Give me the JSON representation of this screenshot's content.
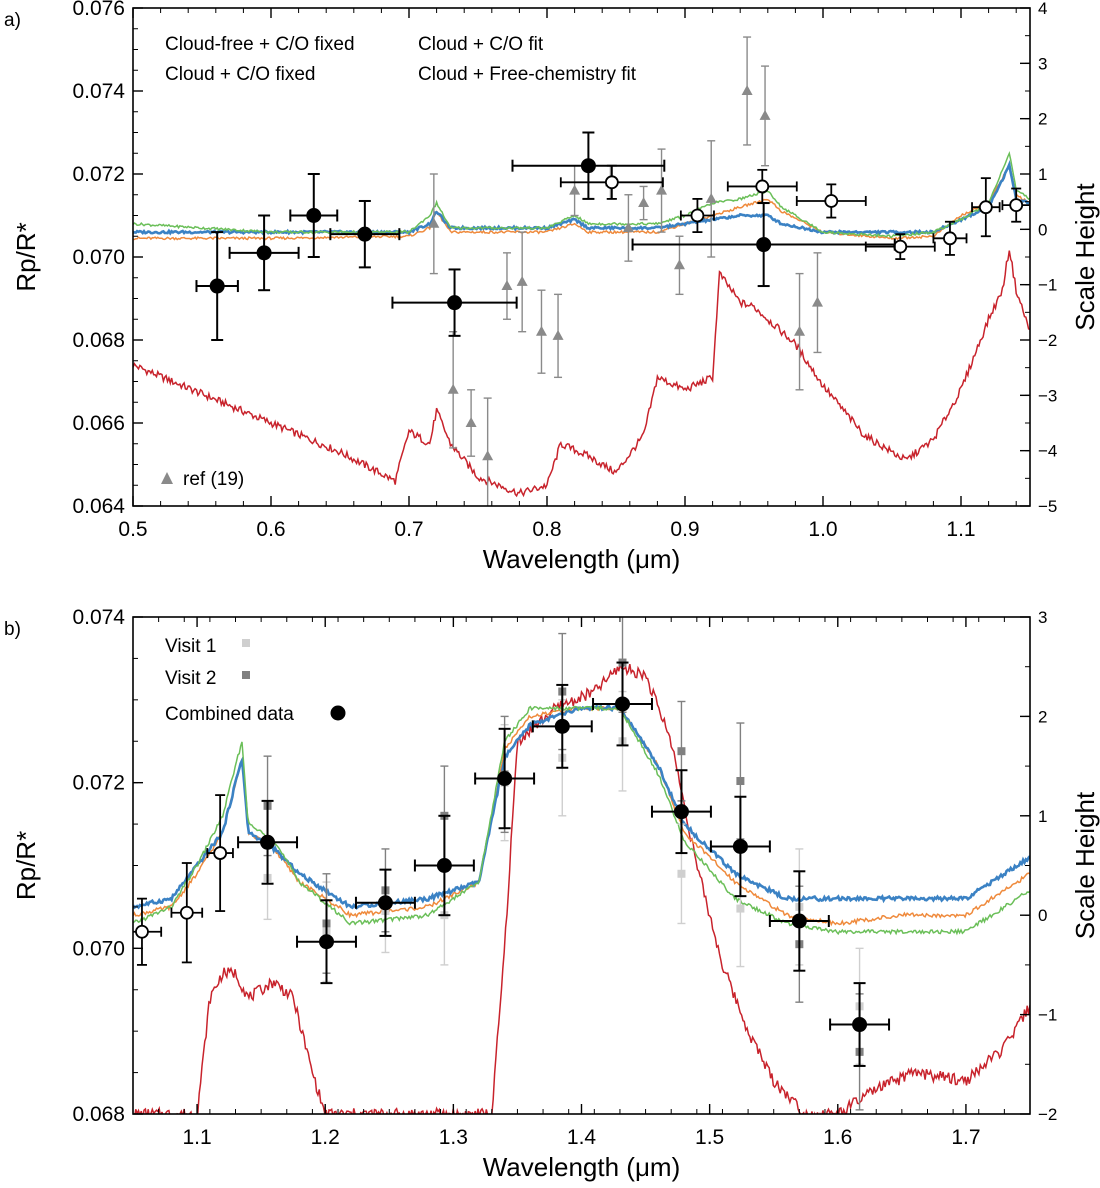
{
  "chart_data": [
    {
      "panel_label": "a)",
      "type": "line",
      "xlabel": "Wavelength (μm)",
      "ylabel": "Rp/R*",
      "y2label": "Scale Height",
      "xlim": [
        0.5,
        1.15
      ],
      "ylim": [
        0.064,
        0.076
      ],
      "y2lim": [
        -5,
        4
      ],
      "xticks": [
        "0.5",
        "0.6",
        "0.7",
        "0.8",
        "0.9",
        "1.0",
        "1.1"
      ],
      "yticks": [
        "0.064",
        "0.066",
        "0.068",
        "0.070",
        "0.072",
        "0.074",
        "0.076"
      ],
      "y2ticks": [
        "-5",
        "-4",
        "-3",
        "-2",
        "-1",
        "0",
        "1",
        "2",
        "3",
        "4"
      ],
      "models": [
        {
          "name": "Cloud-free + C/O fixed",
          "color": "#c8232c",
          "x": [
            0.5,
            0.55,
            0.6,
            0.65,
            0.69,
            0.7,
            0.715,
            0.72,
            0.73,
            0.75,
            0.78,
            0.8,
            0.81,
            0.83,
            0.85,
            0.87,
            0.88,
            0.9,
            0.92,
            0.925,
            0.94,
            0.95,
            0.96,
            0.98,
            1.0,
            1.03,
            1.06,
            1.08,
            1.1,
            1.12,
            1.13,
            1.135,
            1.14,
            1.15
          ],
          "y": [
            0.0674,
            0.0667,
            0.066,
            0.0653,
            0.0646,
            0.0658,
            0.0655,
            0.0663,
            0.0655,
            0.0647,
            0.0643,
            0.0645,
            0.0655,
            0.0652,
            0.0648,
            0.0657,
            0.0671,
            0.0668,
            0.0671,
            0.0696,
            0.0689,
            0.0688,
            0.0685,
            0.0679,
            0.0669,
            0.0657,
            0.0651,
            0.0656,
            0.0668,
            0.0685,
            0.0692,
            0.0702,
            0.0692,
            0.0682
          ]
        },
        {
          "name": "Cloud + C/O fit",
          "color": "#ef8a3c",
          "x": [
            0.5,
            0.6,
            0.7,
            0.715,
            0.72,
            0.73,
            0.8,
            0.82,
            0.83,
            0.88,
            0.9,
            0.92,
            0.94,
            0.96,
            0.97,
            1.0,
            1.05,
            1.08,
            1.1,
            1.12,
            1.135,
            1.14,
            1.15
          ],
          "y": [
            0.07045,
            0.07045,
            0.0705,
            0.0707,
            0.0711,
            0.0706,
            0.0706,
            0.0708,
            0.0706,
            0.0706,
            0.0708,
            0.071,
            0.0712,
            0.0714,
            0.0711,
            0.0706,
            0.07045,
            0.0705,
            0.071,
            0.0713,
            0.0722,
            0.0715,
            0.0713
          ]
        },
        {
          "name": "Cloud + C/O fixed",
          "color": "#3b82c4",
          "x": [
            0.5,
            0.6,
            0.7,
            0.715,
            0.72,
            0.73,
            0.8,
            0.82,
            0.83,
            0.88,
            0.9,
            0.92,
            0.94,
            0.96,
            0.97,
            1.0,
            1.05,
            1.08,
            1.1,
            1.12,
            1.135,
            1.14,
            1.15
          ],
          "y": [
            0.0706,
            0.0706,
            0.0706,
            0.0708,
            0.0711,
            0.0707,
            0.0707,
            0.0709,
            0.0707,
            0.0707,
            0.0708,
            0.0709,
            0.071,
            0.071,
            0.0708,
            0.0706,
            0.0706,
            0.0706,
            0.0709,
            0.0712,
            0.0722,
            0.0714,
            0.0713
          ]
        },
        {
          "name": "Cloud + Free-chemistry fit",
          "color": "#6bbf59",
          "x": [
            0.5,
            0.6,
            0.7,
            0.715,
            0.72,
            0.73,
            0.8,
            0.82,
            0.83,
            0.88,
            0.9,
            0.92,
            0.94,
            0.96,
            0.97,
            1.0,
            1.05,
            1.08,
            1.1,
            1.12,
            1.135,
            1.14,
            1.15
          ],
          "y": [
            0.0708,
            0.0706,
            0.0706,
            0.071,
            0.0713,
            0.0707,
            0.0707,
            0.071,
            0.0708,
            0.0708,
            0.071,
            0.0713,
            0.0714,
            0.0716,
            0.0712,
            0.0706,
            0.0705,
            0.0706,
            0.0709,
            0.0713,
            0.0725,
            0.0716,
            0.0714
          ]
        }
      ],
      "combined_points": [
        {
          "x": 0.561,
          "xerr": 0.015,
          "y": 0.0693,
          "yerr": 0.0013
        },
        {
          "x": 0.595,
          "xerr": 0.025,
          "y": 0.0701,
          "yerr": 0.0009
        },
        {
          "x": 0.631,
          "xerr": 0.017,
          "y": 0.071,
          "yerr": 0.001
        },
        {
          "x": 0.668,
          "xerr": 0.025,
          "y": 0.07055,
          "yerr": 0.0008
        },
        {
          "x": 0.733,
          "xerr": 0.045,
          "y": 0.0689,
          "yerr": 0.0008
        },
        {
          "x": 0.83,
          "xerr": 0.055,
          "y": 0.0722,
          "yerr": 0.0008
        },
        {
          "x": 0.957,
          "xerr": 0.095,
          "y": 0.0703,
          "yerr": 0.001
        }
      ],
      "open_points": [
        {
          "x": 0.847,
          "xerr": 0.037,
          "y": 0.0718,
          "yerr": 0.0004
        },
        {
          "x": 0.909,
          "xerr": 0.012,
          "y": 0.071,
          "yerr": 0.0004
        },
        {
          "x": 0.956,
          "xerr": 0.025,
          "y": 0.0717,
          "yerr": 0.0004
        },
        {
          "x": 1.006,
          "xerr": 0.025,
          "y": 0.07135,
          "yerr": 0.0004
        },
        {
          "x": 1.056,
          "xerr": 0.025,
          "y": 0.07025,
          "yerr": 0.0003
        },
        {
          "x": 1.092,
          "xerr": 0.012,
          "y": 0.07045,
          "yerr": 0.0004
        },
        {
          "x": 1.118,
          "xerr": 0.01,
          "y": 0.0712,
          "yerr": 0.0007
        },
        {
          "x": 1.14,
          "xerr": 0.01,
          "y": 0.07125,
          "yerr": 0.0004
        }
      ],
      "ref_points": [
        {
          "x": 0.718,
          "y": 0.0708,
          "yerr": 0.0012
        },
        {
          "x": 0.732,
          "y": 0.0668,
          "yerr": 0.0014
        },
        {
          "x": 0.745,
          "y": 0.066,
          "yerr": 0.0008
        },
        {
          "x": 0.757,
          "y": 0.0652,
          "yerr": 0.0014
        },
        {
          "x": 0.771,
          "y": 0.0693,
          "yerr": 0.0008
        },
        {
          "x": 0.782,
          "y": 0.0694,
          "yerr": 0.0012
        },
        {
          "x": 0.796,
          "y": 0.0682,
          "yerr": 0.001
        },
        {
          "x": 0.808,
          "y": 0.0681,
          "yerr": 0.001
        },
        {
          "x": 0.82,
          "y": 0.0716,
          "yerr": 0.0006
        },
        {
          "x": 0.846,
          "y": 0.0718,
          "yerr": 0.0004
        },
        {
          "x": 0.859,
          "y": 0.0707,
          "yerr": 0.0008
        },
        {
          "x": 0.87,
          "y": 0.0713,
          "yerr": 0.0004
        },
        {
          "x": 0.883,
          "y": 0.0716,
          "yerr": 0.001
        },
        {
          "x": 0.896,
          "y": 0.0698,
          "yerr": 0.0007
        },
        {
          "x": 0.919,
          "y": 0.0714,
          "yerr": 0.0014
        },
        {
          "x": 0.945,
          "y": 0.074,
          "yerr": 0.0013
        },
        {
          "x": 0.958,
          "y": 0.0734,
          "yerr": 0.0012
        },
        {
          "x": 0.983,
          "y": 0.0682,
          "yerr": 0.0014
        },
        {
          "x": 0.996,
          "y": 0.0689,
          "yerr": 0.0012
        }
      ],
      "legend": {
        "entries": [
          "Cloud-free + C/O fixed",
          "Cloud + C/O fit",
          "Cloud + C/O fixed",
          "Cloud + Free-chemistry fit"
        ],
        "ref_label": "ref (19)"
      }
    },
    {
      "panel_label": "b)",
      "type": "line",
      "xlabel": "Wavelength (μm)",
      "ylabel": "Rp/R*",
      "y2label": "Scale Height",
      "xlim": [
        1.05,
        1.75
      ],
      "ylim": [
        0.068,
        0.074
      ],
      "y2lim": [
        -2,
        3
      ],
      "xticks": [
        "1.1",
        "1.2",
        "1.3",
        "1.4",
        "1.5",
        "1.6",
        "1.7"
      ],
      "yticks": [
        "0.068",
        "0.070",
        "0.072",
        "0.074"
      ],
      "y2ticks": [
        "-2",
        "-1",
        "0",
        "1",
        "2",
        "3"
      ],
      "models": [
        {
          "name": "Cloud-free + C/O fixed",
          "color": "#c8232c",
          "x": [
            1.1,
            1.11,
            1.12,
            1.13,
            1.14,
            1.16,
            1.175,
            1.19,
            1.2,
            1.33,
            1.34,
            1.35,
            1.38,
            1.41,
            1.43,
            1.45,
            1.47,
            1.49,
            1.51,
            1.53,
            1.55,
            1.575,
            1.6,
            1.63,
            1.66,
            1.7,
            1.73,
            1.75
          ],
          "y": [
            0.068,
            0.0694,
            0.0697,
            0.0697,
            0.0694,
            0.0696,
            0.0694,
            0.0685,
            0.068,
            0.068,
            0.07,
            0.0725,
            0.0729,
            0.0731,
            0.0734,
            0.0733,
            0.0725,
            0.071,
            0.0698,
            0.069,
            0.0684,
            0.068,
            0.068,
            0.0683,
            0.0685,
            0.0684,
            0.0688,
            0.0693
          ]
        },
        {
          "name": "Cloud + C/O fit",
          "color": "#ef8a3c",
          "x": [
            1.05,
            1.08,
            1.1,
            1.12,
            1.135,
            1.14,
            1.16,
            1.18,
            1.22,
            1.28,
            1.32,
            1.34,
            1.36,
            1.4,
            1.43,
            1.46,
            1.48,
            1.52,
            1.56,
            1.6,
            1.65,
            1.7,
            1.75
          ],
          "y": [
            0.0704,
            0.0705,
            0.0709,
            0.0714,
            0.0723,
            0.0714,
            0.0712,
            0.0708,
            0.0704,
            0.0705,
            0.0708,
            0.0724,
            0.0728,
            0.0729,
            0.0729,
            0.0722,
            0.0714,
            0.0708,
            0.0704,
            0.0703,
            0.0704,
            0.0704,
            0.0709
          ]
        },
        {
          "name": "Cloud + C/O fixed",
          "color": "#3b82c4",
          "x": [
            1.05,
            1.08,
            1.1,
            1.12,
            1.135,
            1.14,
            1.16,
            1.18,
            1.22,
            1.28,
            1.32,
            1.34,
            1.36,
            1.4,
            1.43,
            1.46,
            1.48,
            1.52,
            1.56,
            1.6,
            1.65,
            1.7,
            1.75
          ],
          "y": [
            0.0705,
            0.0706,
            0.071,
            0.0714,
            0.0723,
            0.0714,
            0.0712,
            0.0709,
            0.0705,
            0.0706,
            0.0708,
            0.0723,
            0.0727,
            0.0729,
            0.0729,
            0.0722,
            0.0715,
            0.0709,
            0.0706,
            0.0706,
            0.0706,
            0.0706,
            0.0711
          ]
        },
        {
          "name": "Cloud + Free-chemistry fit",
          "color": "#6bbf59",
          "x": [
            1.05,
            1.08,
            1.1,
            1.12,
            1.135,
            1.14,
            1.16,
            1.18,
            1.22,
            1.28,
            1.32,
            1.34,
            1.36,
            1.4,
            1.43,
            1.46,
            1.48,
            1.52,
            1.56,
            1.6,
            1.65,
            1.7,
            1.75
          ],
          "y": [
            0.0703,
            0.0705,
            0.071,
            0.0716,
            0.0725,
            0.0715,
            0.0713,
            0.0708,
            0.0703,
            0.0704,
            0.0708,
            0.0725,
            0.0729,
            0.0729,
            0.0729,
            0.0721,
            0.0713,
            0.0706,
            0.0703,
            0.0702,
            0.0702,
            0.0702,
            0.0707
          ]
        }
      ],
      "combined_points": [
        {
          "x": 1.155,
          "xerr": 0.023,
          "y": 0.07128,
          "yerr": 0.0005
        },
        {
          "x": 1.201,
          "xerr": 0.023,
          "y": 0.07008,
          "yerr": 0.0005
        },
        {
          "x": 1.247,
          "xerr": 0.023,
          "y": 0.07055,
          "yerr": 0.0004
        },
        {
          "x": 1.293,
          "xerr": 0.023,
          "y": 0.071,
          "yerr": 0.0006
        },
        {
          "x": 1.34,
          "xerr": 0.023,
          "y": 0.07205,
          "yerr": 0.0006
        },
        {
          "x": 1.385,
          "xerr": 0.023,
          "y": 0.07268,
          "yerr": 0.0005
        },
        {
          "x": 1.432,
          "xerr": 0.023,
          "y": 0.07295,
          "yerr": 0.0005
        },
        {
          "x": 1.478,
          "xerr": 0.023,
          "y": 0.07165,
          "yerr": 0.0005
        },
        {
          "x": 1.524,
          "xerr": 0.023,
          "y": 0.07123,
          "yerr": 0.0006
        },
        {
          "x": 1.57,
          "xerr": 0.023,
          "y": 0.07033,
          "yerr": 0.0006
        },
        {
          "x": 1.617,
          "xerr": 0.023,
          "y": 0.06908,
          "yerr": 0.0005
        }
      ],
      "open_points": [
        {
          "x": 1.057,
          "xerr": 0.015,
          "y": 0.0702,
          "yerr": 0.0004
        },
        {
          "x": 1.092,
          "xerr": 0.012,
          "y": 0.07043,
          "yerr": 0.0006
        },
        {
          "x": 1.118,
          "xerr": 0.01,
          "y": 0.07115,
          "yerr": 0.0007
        }
      ],
      "visit1_points": [
        {
          "x": 1.155,
          "y": 0.07085,
          "yerr": 0.0005
        },
        {
          "x": 1.201,
          "y": 0.0702,
          "yerr": 0.0006
        },
        {
          "x": 1.247,
          "y": 0.07045,
          "yerr": 0.0005
        },
        {
          "x": 1.293,
          "y": 0.0704,
          "yerr": 0.0006
        },
        {
          "x": 1.34,
          "y": 0.072,
          "yerr": 0.0007
        },
        {
          "x": 1.385,
          "y": 0.0723,
          "yerr": 0.0007
        },
        {
          "x": 1.432,
          "y": 0.0725,
          "yerr": 0.0006
        },
        {
          "x": 1.478,
          "y": 0.0709,
          "yerr": 0.0006
        },
        {
          "x": 1.524,
          "y": 0.07048,
          "yerr": 0.0007
        },
        {
          "x": 1.57,
          "y": 0.0705,
          "yerr": 0.0007
        },
        {
          "x": 1.617,
          "y": 0.0693,
          "yerr": 0.0007
        }
      ],
      "visit2_points": [
        {
          "x": 1.155,
          "y": 0.07172,
          "yerr": 0.0006
        },
        {
          "x": 1.201,
          "y": 0.0703,
          "yerr": 0.0006
        },
        {
          "x": 1.247,
          "y": 0.0707,
          "yerr": 0.0005
        },
        {
          "x": 1.293,
          "y": 0.0716,
          "yerr": 0.0006
        },
        {
          "x": 1.34,
          "y": 0.0721,
          "yerr": 0.0007
        },
        {
          "x": 1.385,
          "y": 0.0731,
          "yerr": 0.0007
        },
        {
          "x": 1.432,
          "y": 0.07345,
          "yerr": 0.0006
        },
        {
          "x": 1.478,
          "y": 0.07238,
          "yerr": 0.0006
        },
        {
          "x": 1.524,
          "y": 0.07202,
          "yerr": 0.0007
        },
        {
          "x": 1.57,
          "y": 0.07005,
          "yerr": 0.0007
        },
        {
          "x": 1.617,
          "y": 0.06875,
          "yerr": 0.0007
        }
      ],
      "legend": {
        "visit1_label": "Visit 1",
        "visit2_label": "Visit 2",
        "combined_label": "Combined data",
        "visit1_color": "#cfcfcf",
        "visit2_color": "#808080"
      }
    }
  ]
}
